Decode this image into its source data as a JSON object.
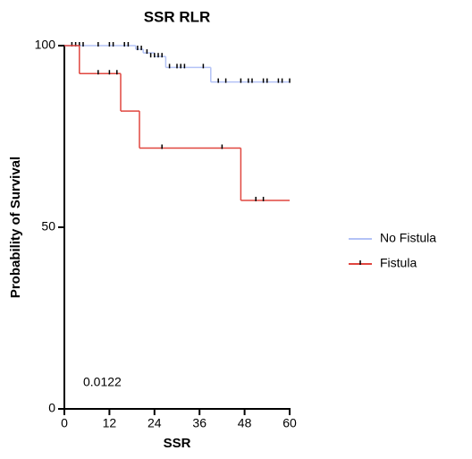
{
  "chart_data": {
    "type": "step",
    "title": "SSR RLR",
    "x_label": "SSR",
    "y_label": "Probability of Survival",
    "xlim": [
      0,
      60
    ],
    "xticks": [
      0,
      12,
      24,
      36,
      48,
      60
    ],
    "ylim": [
      0,
      100
    ],
    "yticks": [
      0,
      50,
      100
    ],
    "annotation": "0.0122",
    "series": [
      {
        "name": "No Fistula",
        "color": "#b3c2f6",
        "x": [
          0,
          19,
          21,
          24,
          27,
          39,
          60
        ],
        "values": [
          100,
          99,
          98,
          97,
          94,
          90,
          90
        ],
        "censor_x": [
          2,
          3,
          4,
          5,
          9,
          12,
          13,
          16,
          17,
          19.5,
          20.5,
          22,
          23,
          24,
          25,
          26,
          28,
          30,
          31,
          32,
          37,
          41,
          43,
          47,
          49,
          50,
          53,
          54,
          57,
          58,
          60
        ],
        "censor_values": [
          100,
          100,
          100,
          100,
          100,
          100,
          100,
          100,
          100,
          99,
          99,
          98,
          97,
          97,
          97,
          97,
          94,
          94,
          94,
          94,
          94,
          90,
          90,
          90,
          90,
          90,
          90,
          90,
          90,
          90,
          90
        ]
      },
      {
        "name": "Fistula",
        "color": "#e0463f",
        "x": [
          0,
          4,
          15,
          20,
          47,
          60
        ],
        "values": [
          100,
          92.3,
          82,
          71.8,
          57.4,
          57.4
        ],
        "censor_x": [
          9,
          12,
          14,
          26,
          42,
          51,
          53
        ],
        "censor_values": [
          92.3,
          92.3,
          92.3,
          71.8,
          71.8,
          57.4,
          57.4
        ]
      }
    ]
  }
}
